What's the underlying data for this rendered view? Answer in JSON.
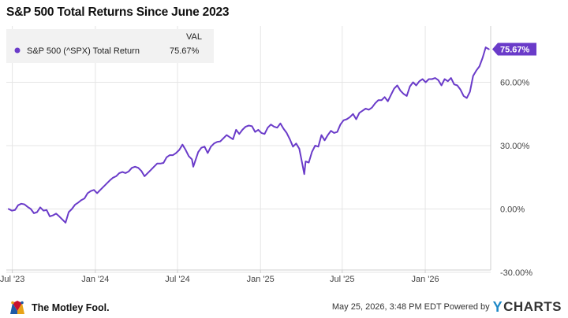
{
  "title": "S&P 500 Total Returns Since June 2023",
  "legend": {
    "header": "VAL",
    "series_label": "S&P 500 (^SPX) Total Return",
    "series_value": "75.67%"
  },
  "last_value_badge": "75.67%",
  "footer": {
    "brand": "The Motley Fool.",
    "timestamp": "May 25, 2026, 3:48 PM EDT Powered by",
    "powered_by_brand": "CHARTS"
  },
  "colors": {
    "line": "#6a3bc9",
    "grid": "#e5e5e5",
    "badge_text": "#ffffff",
    "legend_bg": "#f2f2f2"
  },
  "chart_data": {
    "type": "line",
    "title": "S&P 500 Total Returns Since June 2023",
    "xlabel": "",
    "ylabel": "",
    "ylim": [
      -30,
      82
    ],
    "y_ticks": [
      "-30.00%",
      "0.00%",
      "30.00%",
      "60.00%"
    ],
    "y_tick_values": [
      -30,
      0,
      30,
      60
    ],
    "x_ticks": [
      "Jul '23",
      "Jan '24",
      "Jul '24",
      "Jan '25",
      "Jul '25",
      "Jan '26"
    ],
    "x_tick_dates": [
      "2023-07-01",
      "2024-01-01",
      "2024-07-01",
      "2025-01-01",
      "2025-07-01",
      "2026-01-01"
    ],
    "grid": true,
    "legend_position": "top-left",
    "series": [
      {
        "name": "S&P 500 (^SPX) Total Return",
        "points": [
          [
            "2023-06-23",
            0.0
          ],
          [
            "2023-06-30",
            -0.8
          ],
          [
            "2023-07-07",
            -0.5
          ],
          [
            "2023-07-14",
            1.8
          ],
          [
            "2023-07-21",
            2.5
          ],
          [
            "2023-07-28",
            2.2
          ],
          [
            "2023-08-04",
            1.0
          ],
          [
            "2023-08-11",
            0.0
          ],
          [
            "2023-08-18",
            -2.0
          ],
          [
            "2023-08-25",
            -1.5
          ],
          [
            "2023-09-01",
            0.8
          ],
          [
            "2023-09-08",
            -0.8
          ],
          [
            "2023-09-15",
            -0.5
          ],
          [
            "2023-09-22",
            -3.5
          ],
          [
            "2023-09-29",
            -3.0
          ],
          [
            "2023-10-06",
            -2.2
          ],
          [
            "2023-10-13",
            -3.5
          ],
          [
            "2023-10-20",
            -5.0
          ],
          [
            "2023-10-27",
            -6.5
          ],
          [
            "2023-11-03",
            -1.5
          ],
          [
            "2023-11-10",
            0.0
          ],
          [
            "2023-11-17",
            2.0
          ],
          [
            "2023-11-24",
            3.0
          ],
          [
            "2023-12-01",
            4.2
          ],
          [
            "2023-12-08",
            5.0
          ],
          [
            "2023-12-15",
            7.5
          ],
          [
            "2023-12-22",
            8.5
          ],
          [
            "2023-12-29",
            9.0
          ],
          [
            "2024-01-05",
            7.5
          ],
          [
            "2024-01-12",
            9.0
          ],
          [
            "2024-01-19",
            10.5
          ],
          [
            "2024-01-26",
            12.0
          ],
          [
            "2024-02-02",
            13.5
          ],
          [
            "2024-02-09",
            14.8
          ],
          [
            "2024-02-16",
            15.5
          ],
          [
            "2024-02-23",
            17.0
          ],
          [
            "2024-03-01",
            17.5
          ],
          [
            "2024-03-08",
            17.0
          ],
          [
            "2024-03-15",
            17.8
          ],
          [
            "2024-03-22",
            19.5
          ],
          [
            "2024-03-29",
            20.0
          ],
          [
            "2024-04-05",
            19.5
          ],
          [
            "2024-04-12",
            18.0
          ],
          [
            "2024-04-19",
            15.5
          ],
          [
            "2024-04-26",
            17.0
          ],
          [
            "2024-05-03",
            18.5
          ],
          [
            "2024-05-10",
            20.0
          ],
          [
            "2024-05-17",
            21.5
          ],
          [
            "2024-05-24",
            21.5
          ],
          [
            "2024-05-31",
            21.8
          ],
          [
            "2024-06-07",
            24.5
          ],
          [
            "2024-06-14",
            25.5
          ],
          [
            "2024-06-21",
            25.5
          ],
          [
            "2024-06-28",
            26.5
          ],
          [
            "2024-07-05",
            28.0
          ],
          [
            "2024-07-12",
            30.5
          ],
          [
            "2024-07-19",
            28.0
          ],
          [
            "2024-07-26",
            25.0
          ],
          [
            "2024-08-02",
            23.5
          ],
          [
            "2024-08-05",
            20.0
          ],
          [
            "2024-08-09",
            22.5
          ],
          [
            "2024-08-16",
            27.0
          ],
          [
            "2024-08-23",
            29.0
          ],
          [
            "2024-08-30",
            29.5
          ],
          [
            "2024-09-06",
            26.5
          ],
          [
            "2024-09-13",
            29.5
          ],
          [
            "2024-09-20",
            31.0
          ],
          [
            "2024-09-27",
            31.8
          ],
          [
            "2024-10-04",
            32.0
          ],
          [
            "2024-10-11",
            33.5
          ],
          [
            "2024-10-18",
            35.0
          ],
          [
            "2024-10-25",
            34.0
          ],
          [
            "2024-11-01",
            33.0
          ],
          [
            "2024-11-08",
            37.5
          ],
          [
            "2024-11-15",
            35.5
          ],
          [
            "2024-11-22",
            37.5
          ],
          [
            "2024-11-29",
            39.0
          ],
          [
            "2024-12-06",
            39.5
          ],
          [
            "2024-12-13",
            39.2
          ],
          [
            "2024-12-20",
            36.5
          ],
          [
            "2024-12-27",
            37.5
          ],
          [
            "2025-01-03",
            36.0
          ],
          [
            "2025-01-10",
            35.5
          ],
          [
            "2025-01-17",
            38.5
          ],
          [
            "2025-01-24",
            40.0
          ],
          [
            "2025-01-31",
            39.0
          ],
          [
            "2025-02-07",
            38.5
          ],
          [
            "2025-02-14",
            40.5
          ],
          [
            "2025-02-21",
            38.0
          ],
          [
            "2025-02-28",
            36.0
          ],
          [
            "2025-03-07",
            33.0
          ],
          [
            "2025-03-14",
            29.5
          ],
          [
            "2025-03-21",
            31.0
          ],
          [
            "2025-03-28",
            28.5
          ],
          [
            "2025-04-04",
            21.0
          ],
          [
            "2025-04-08",
            16.5
          ],
          [
            "2025-04-11",
            22.5
          ],
          [
            "2025-04-18",
            22.0
          ],
          [
            "2025-04-25",
            27.0
          ],
          [
            "2025-05-02",
            30.0
          ],
          [
            "2025-05-09",
            29.5
          ],
          [
            "2025-05-16",
            35.0
          ],
          [
            "2025-05-23",
            32.5
          ],
          [
            "2025-05-30",
            35.0
          ],
          [
            "2025-06-06",
            37.0
          ],
          [
            "2025-06-13",
            36.0
          ],
          [
            "2025-06-20",
            36.5
          ],
          [
            "2025-06-27",
            40.0
          ],
          [
            "2025-07-04",
            42.0
          ],
          [
            "2025-07-11",
            42.5
          ],
          [
            "2025-07-18",
            43.5
          ],
          [
            "2025-07-25",
            45.0
          ],
          [
            "2025-08-01",
            42.5
          ],
          [
            "2025-08-08",
            45.5
          ],
          [
            "2025-08-15",
            46.5
          ],
          [
            "2025-08-22",
            47.5
          ],
          [
            "2025-08-29",
            47.0
          ],
          [
            "2025-09-05",
            48.0
          ],
          [
            "2025-09-12",
            50.0
          ],
          [
            "2025-09-19",
            51.5
          ],
          [
            "2025-09-26",
            51.5
          ],
          [
            "2025-10-03",
            53.0
          ],
          [
            "2025-10-10",
            51.0
          ],
          [
            "2025-10-17",
            54.0
          ],
          [
            "2025-10-24",
            57.0
          ],
          [
            "2025-10-31",
            58.5
          ],
          [
            "2025-11-07",
            56.0
          ],
          [
            "2025-11-14",
            54.5
          ],
          [
            "2025-11-21",
            53.5
          ],
          [
            "2025-11-28",
            58.0
          ],
          [
            "2025-12-05",
            60.0
          ],
          [
            "2025-12-12",
            58.5
          ],
          [
            "2025-12-19",
            60.5
          ],
          [
            "2025-12-26",
            61.5
          ],
          [
            "2026-01-02",
            60.0
          ],
          [
            "2026-01-09",
            61.5
          ],
          [
            "2026-01-16",
            61.5
          ],
          [
            "2026-01-23",
            62.0
          ],
          [
            "2026-01-30",
            61.0
          ],
          [
            "2026-02-06",
            58.5
          ],
          [
            "2026-02-13",
            61.5
          ],
          [
            "2026-02-20",
            60.5
          ],
          [
            "2026-02-27",
            62.0
          ],
          [
            "2026-03-06",
            59.0
          ],
          [
            "2026-03-13",
            58.5
          ],
          [
            "2026-03-20",
            56.5
          ],
          [
            "2026-03-27",
            53.5
          ],
          [
            "2026-04-03",
            52.5
          ],
          [
            "2026-04-10",
            55.5
          ],
          [
            "2026-04-17",
            63.0
          ],
          [
            "2026-04-24",
            65.5
          ],
          [
            "2026-05-01",
            67.5
          ],
          [
            "2026-05-08",
            71.5
          ],
          [
            "2026-05-15",
            76.5
          ],
          [
            "2026-05-22",
            75.67
          ]
        ]
      }
    ]
  }
}
